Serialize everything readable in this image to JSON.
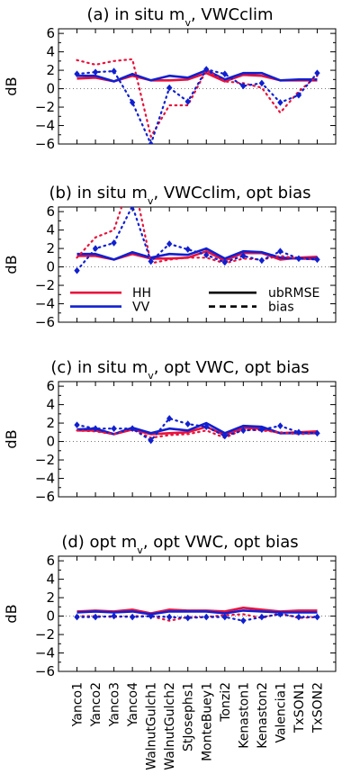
{
  "figure": {
    "sites": [
      "Yanco1",
      "Yanco2",
      "Yanco3",
      "Yanco4",
      "WalnutGulch1",
      "WalnutGulch2",
      "StJosephs1",
      "MonteBuey1",
      "Tonzi2",
      "Kenaston1",
      "Kenaston2",
      "Valencia1",
      "TxSON1",
      "TxSON2"
    ]
  },
  "chart_data": [
    {
      "type": "line",
      "title_parts": [
        "(a) in situ m",
        "v",
        ", VWCclim"
      ],
      "ylabel": "dB",
      "ylim": [
        -6,
        6.5
      ],
      "yticks": [
        6,
        4,
        2,
        0,
        -2,
        -4,
        -6
      ],
      "categories": [
        "Yanco1",
        "Yanco2",
        "Yanco3",
        "Yanco4",
        "WalnutGulch1",
        "WalnutGulch2",
        "StJosephs1",
        "MonteBuey1",
        "Tonzi2",
        "Kenaston1",
        "Kenaston2",
        "Valencia1",
        "TxSON1",
        "TxSON2"
      ],
      "series": [
        {
          "name": "HH",
          "metric": "ubRMSE",
          "color": "#e8123c",
          "style": "solid",
          "values": [
            1.1,
            1.2,
            0.8,
            1.4,
            0.9,
            0.9,
            1.0,
            1.7,
            0.8,
            1.5,
            1.4,
            0.9,
            0.9,
            0.9
          ]
        },
        {
          "name": "VV",
          "metric": "ubRMSE",
          "color": "#1020d0",
          "style": "solid",
          "values": [
            1.4,
            1.4,
            0.8,
            1.6,
            0.9,
            1.4,
            1.2,
            2.0,
            1.0,
            1.7,
            1.7,
            0.9,
            1.0,
            1.0
          ]
        },
        {
          "name": "HH",
          "metric": "bias",
          "color": "#e8123c",
          "style": "dotted",
          "values": [
            3.1,
            2.6,
            3.0,
            3.2,
            -5.2,
            -1.8,
            -1.8,
            2.0,
            0.8,
            0.6,
            0.1,
            -2.6,
            -0.3,
            1.4
          ]
        },
        {
          "name": "VV",
          "metric": "bias",
          "color": "#1020d0",
          "style": "dotted",
          "values": [
            1.6,
            1.8,
            1.9,
            -1.5,
            -6.0,
            0.1,
            -1.4,
            2.1,
            1.6,
            0.3,
            0.6,
            -1.5,
            -0.7,
            1.7
          ]
        }
      ]
    },
    {
      "type": "line",
      "title_parts": [
        "(b) in situ m",
        "v",
        ", VWCclim, opt bias"
      ],
      "ylabel": "dB",
      "ylim": [
        -6,
        6.5
      ],
      "yticks": [
        6,
        4,
        2,
        0,
        -2,
        -4,
        -6
      ],
      "categories": [
        "Yanco1",
        "Yanco2",
        "Yanco3",
        "Yanco4",
        "WalnutGulch1",
        "WalnutGulch2",
        "StJosephs1",
        "MonteBuey1",
        "Tonzi2",
        "Kenaston1",
        "Kenaston2",
        "Valencia1",
        "TxSON1",
        "TxSON2"
      ],
      "legend": {
        "placement": "lower-left",
        "entries": [
          "HH",
          "VV",
          "ubRMSE",
          "bias"
        ]
      },
      "series": [
        {
          "name": "HH",
          "metric": "ubRMSE",
          "color": "#e8123c",
          "style": "solid",
          "values": [
            1.2,
            1.2,
            0.8,
            1.4,
            0.9,
            0.9,
            1.0,
            1.7,
            0.7,
            1.5,
            1.5,
            0.8,
            1.0,
            1.1
          ]
        },
        {
          "name": "VV",
          "metric": "ubRMSE",
          "color": "#1020d0",
          "style": "solid",
          "values": [
            1.4,
            1.4,
            0.8,
            1.6,
            1.0,
            1.4,
            1.3,
            2.0,
            0.9,
            1.7,
            1.6,
            1.0,
            0.9,
            0.9
          ]
        },
        {
          "name": "HH",
          "metric": "bias",
          "color": "#e8123c",
          "style": "dotted",
          "values": [
            1.0,
            3.2,
            4.0,
            10.0,
            0.4,
            0.8,
            1.0,
            1.0,
            0.4,
            0.9,
            0.8,
            1.2,
            0.9,
            0.8
          ]
        },
        {
          "name": "VV",
          "metric": "bias",
          "color": "#1020d0",
          "style": "dotted",
          "values": [
            -0.4,
            2.0,
            2.6,
            6.6,
            0.6,
            2.5,
            1.9,
            1.3,
            0.5,
            1.2,
            0.7,
            1.7,
            0.9,
            0.8
          ]
        }
      ]
    },
    {
      "type": "line",
      "title_parts": [
        "(c) in situ m",
        "v",
        ", opt VWC, opt bias"
      ],
      "ylabel": "dB",
      "ylim": [
        -6,
        6.5
      ],
      "yticks": [
        6,
        4,
        2,
        0,
        -2,
        -4,
        -6
      ],
      "categories": [
        "Yanco1",
        "Yanco2",
        "Yanco3",
        "Yanco4",
        "WalnutGulch1",
        "WalnutGulch2",
        "StJosephs1",
        "MonteBuey1",
        "Tonzi2",
        "Kenaston1",
        "Kenaston2",
        "Valencia1",
        "TxSON1",
        "TxSON2"
      ],
      "series": [
        {
          "name": "HH",
          "metric": "ubRMSE",
          "color": "#e8123c",
          "style": "solid",
          "values": [
            1.2,
            1.2,
            0.8,
            1.3,
            0.8,
            0.9,
            1.0,
            1.6,
            0.7,
            1.5,
            1.4,
            0.9,
            1.0,
            1.1
          ]
        },
        {
          "name": "VV",
          "metric": "ubRMSE",
          "color": "#1020d0",
          "style": "solid",
          "values": [
            1.3,
            1.4,
            0.8,
            1.5,
            0.9,
            1.4,
            1.2,
            2.0,
            0.9,
            1.7,
            1.6,
            0.9,
            0.9,
            0.9
          ]
        },
        {
          "name": "HH",
          "metric": "bias",
          "color": "#e8123c",
          "style": "dotted",
          "values": [
            1.2,
            1.1,
            0.8,
            1.3,
            0.4,
            0.7,
            0.8,
            1.2,
            0.4,
            1.3,
            1.2,
            1.0,
            0.8,
            0.9
          ]
        },
        {
          "name": "VV",
          "metric": "bias",
          "color": "#1020d0",
          "style": "dotted",
          "values": [
            1.8,
            1.4,
            1.4,
            1.4,
            0.1,
            2.5,
            1.9,
            1.6,
            0.6,
            1.2,
            1.3,
            1.7,
            1.0,
            0.9
          ]
        }
      ]
    },
    {
      "type": "line",
      "title_parts": [
        "(d) opt m",
        "v",
        ", opt VWC, opt bias"
      ],
      "ylabel": "dB",
      "ylim": [
        -6,
        6.5
      ],
      "yticks": [
        6,
        4,
        2,
        0,
        -2,
        -4,
        -6
      ],
      "categories": [
        "Yanco1",
        "Yanco2",
        "Yanco3",
        "Yanco4",
        "WalnutGulch1",
        "WalnutGulch2",
        "StJosephs1",
        "MonteBuey1",
        "Tonzi2",
        "Kenaston1",
        "Kenaston2",
        "Valencia1",
        "TxSON1",
        "TxSON2"
      ],
      "series": [
        {
          "name": "HH",
          "metric": "ubRMSE",
          "color": "#e8123c",
          "style": "solid",
          "values": [
            0.5,
            0.6,
            0.5,
            0.7,
            0.3,
            0.7,
            0.6,
            0.6,
            0.5,
            0.9,
            0.7,
            0.5,
            0.6,
            0.6
          ]
        },
        {
          "name": "VV",
          "metric": "ubRMSE",
          "color": "#1020d0",
          "style": "solid",
          "values": [
            0.4,
            0.5,
            0.4,
            0.5,
            0.2,
            0.5,
            0.5,
            0.5,
            0.3,
            0.6,
            0.5,
            0.4,
            0.4,
            0.4
          ]
        },
        {
          "name": "HH",
          "metric": "bias",
          "color": "#e8123c",
          "style": "dotted",
          "values": [
            0.0,
            0.0,
            -0.1,
            0.0,
            0.0,
            -0.5,
            -0.1,
            -0.1,
            0.1,
            0.2,
            -0.2,
            0.3,
            -0.2,
            -0.1
          ]
        },
        {
          "name": "VV",
          "metric": "bias",
          "color": "#1020d0",
          "style": "dotted",
          "values": [
            -0.1,
            -0.1,
            0.0,
            -0.1,
            0.0,
            -0.1,
            -0.2,
            -0.1,
            -0.1,
            -0.5,
            -0.1,
            0.2,
            -0.1,
            -0.1
          ]
        }
      ]
    }
  ],
  "legend": {
    "hh_label": "HH",
    "vv_label": "VV",
    "ubrmse_label": "ubRMSE",
    "bias_label": "bias"
  }
}
